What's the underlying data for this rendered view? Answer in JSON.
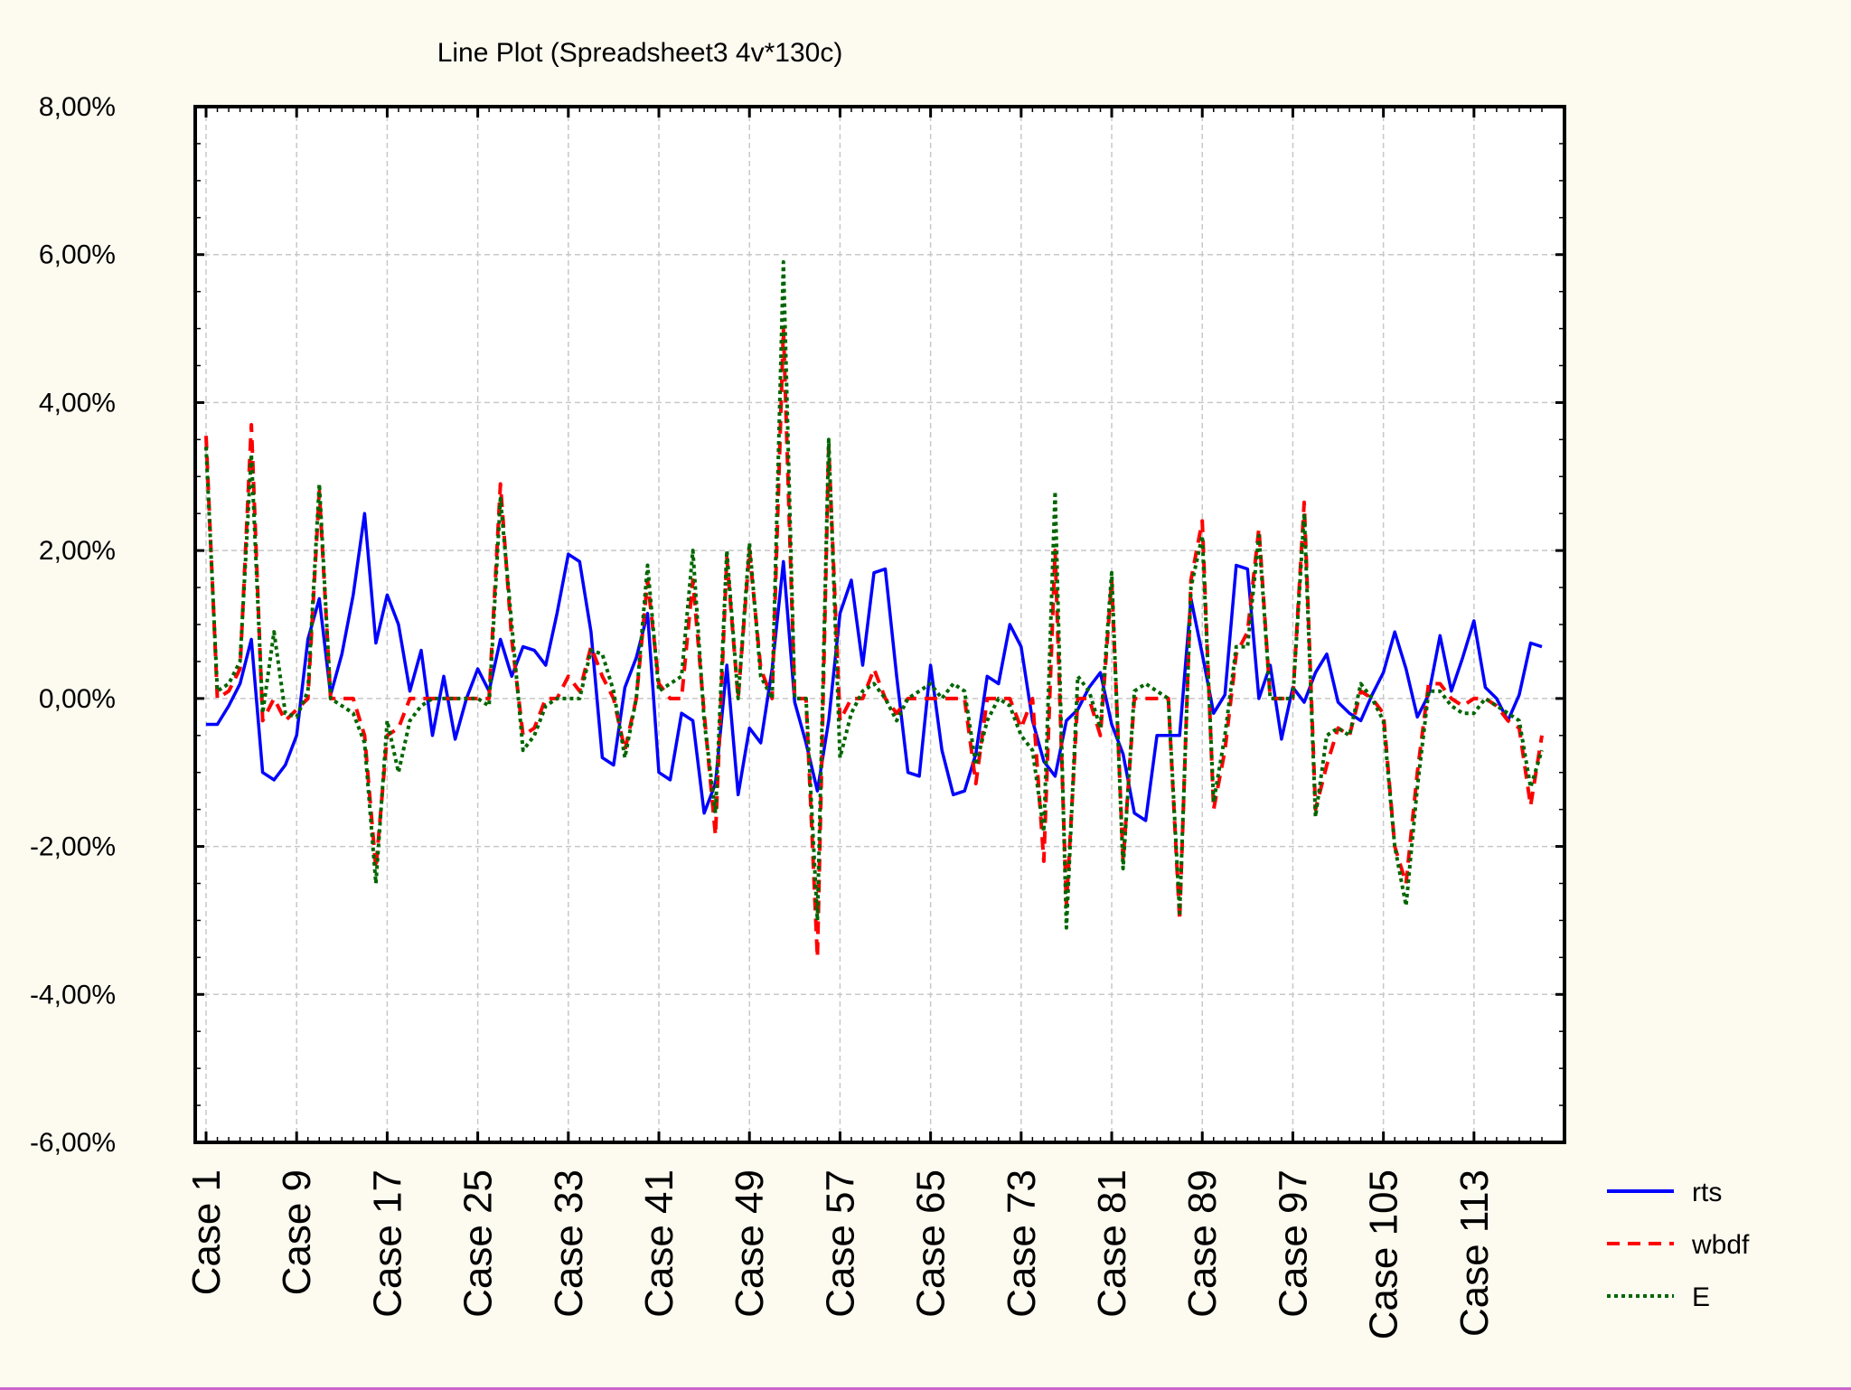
{
  "chart_data": {
    "type": "line",
    "title": "Line Plot (Spreadsheet3 4v*130c)",
    "xlabel": "",
    "ylabel": "",
    "ylim": [
      -6,
      8
    ],
    "y_ticks": [
      -6,
      -4,
      -2,
      0,
      2,
      4,
      6,
      8
    ],
    "y_tick_labels": [
      "-6,00%",
      "-4,00%",
      "-2,00%",
      "0,00%",
      "2,00%",
      "4,00%",
      "6,00%",
      "8,00%"
    ],
    "x_tick_labels": [
      "Case 1",
      "Case 9",
      "Case 17",
      "Case 25",
      "Case 33",
      "Case 41",
      "Case 49",
      "Case 57",
      "Case 65",
      "Case 73",
      "Case 81",
      "Case 89",
      "Case 97",
      "Case 105",
      "Case 113"
    ],
    "n_points": 119,
    "grid": true,
    "legend_position": "bottom-right",
    "series": [
      {
        "name": "rts",
        "color": "#0000ff",
        "style": "solid",
        "values": [
          -0.35,
          -0.35,
          -0.1,
          0.2,
          0.8,
          -1.0,
          -1.1,
          -0.9,
          -0.5,
          0.8,
          1.35,
          0.05,
          0.6,
          1.4,
          2.5,
          0.75,
          1.4,
          1.0,
          0.1,
          0.65,
          -0.5,
          0.3,
          -0.55,
          0.0,
          0.4,
          0.1,
          0.8,
          0.3,
          0.7,
          0.65,
          0.45,
          1.15,
          1.95,
          1.85,
          0.9,
          -0.8,
          -0.9,
          0.15,
          0.55,
          1.15,
          -1.0,
          -1.1,
          -0.2,
          -0.3,
          -1.55,
          -1.15,
          0.45,
          -1.3,
          -0.4,
          -0.6,
          0.4,
          1.85,
          -0.05,
          -0.6,
          -1.25,
          -0.3,
          1.15,
          1.6,
          0.45,
          1.7,
          1.75,
          0.3,
          -1.0,
          -1.05,
          0.45,
          -0.7,
          -1.3,
          -1.25,
          -0.75,
          0.3,
          0.2,
          1.0,
          0.7,
          -0.3,
          -0.85,
          -1.05,
          -0.3,
          -0.15,
          0.15,
          0.35,
          -0.35,
          -0.75,
          -1.55,
          -1.65,
          -0.5,
          -0.5,
          -0.5,
          1.35,
          0.6,
          -0.2,
          0.05,
          1.8,
          1.75,
          0.0,
          0.45,
          -0.55,
          0.15,
          -0.05,
          0.35,
          0.6,
          -0.05,
          -0.2,
          -0.3,
          0.05,
          0.35,
          0.9,
          0.4,
          -0.25,
          0.05,
          0.85,
          0.1,
          0.55,
          1.05,
          0.15,
          0.0,
          -0.3,
          0.05,
          0.75,
          0.7
        ]
      },
      {
        "name": "wbdf",
        "color": "#ff0000",
        "style": "dashed",
        "values": [
          3.55,
          0.0,
          0.1,
          0.4,
          3.7,
          -0.3,
          0.0,
          -0.3,
          -0.15,
          0.0,
          2.8,
          0.0,
          0.0,
          0.0,
          -0.5,
          -2.3,
          -0.5,
          -0.4,
          0.0,
          0.0,
          0.0,
          0.0,
          0.0,
          0.0,
          0.0,
          0.0,
          2.9,
          0.8,
          -0.5,
          -0.4,
          0.0,
          0.0,
          0.3,
          0.1,
          0.7,
          0.3,
          0.0,
          -0.7,
          0.0,
          1.6,
          0.2,
          0.0,
          0.0,
          1.6,
          -0.2,
          -1.85,
          1.9,
          0.0,
          2.0,
          0.4,
          0.0,
          5.0,
          0.0,
          0.0,
          -3.5,
          3.4,
          -0.3,
          0.0,
          0.0,
          0.4,
          0.0,
          -0.2,
          0.0,
          0.0,
          0.0,
          0.0,
          0.0,
          0.0,
          -1.15,
          0.0,
          0.0,
          0.0,
          -0.4,
          0.0,
          -2.2,
          2.0,
          -2.8,
          0.0,
          0.0,
          -0.5,
          1.6,
          -2.2,
          0.0,
          0.0,
          0.0,
          0.0,
          -3.0,
          1.6,
          2.4,
          -1.5,
          -0.7,
          0.6,
          0.9,
          2.3,
          0.0,
          0.0,
          0.0,
          2.65,
          -1.5,
          -0.9,
          -0.4,
          -0.5,
          0.1,
          0.0,
          -0.2,
          -2.0,
          -2.5,
          -1.0,
          0.2,
          0.2,
          0.0,
          -0.1,
          0.0,
          0.0,
          -0.1,
          -0.3,
          -0.4,
          -1.45,
          -0.5
        ]
      },
      {
        "name": "E",
        "color": "#006600",
        "style": "dotted",
        "values": [
          3.4,
          0.1,
          0.2,
          0.5,
          3.3,
          -0.2,
          0.9,
          -0.2,
          -0.25,
          0.1,
          2.9,
          0.0,
          -0.1,
          -0.2,
          -0.6,
          -2.5,
          -0.3,
          -1.0,
          -0.3,
          -0.1,
          0.0,
          0.0,
          0.0,
          0.0,
          0.0,
          -0.1,
          2.7,
          1.0,
          -0.7,
          -0.5,
          -0.1,
          0.0,
          0.0,
          0.0,
          0.65,
          0.6,
          0.1,
          -0.8,
          0.0,
          1.8,
          0.1,
          0.2,
          0.3,
          2.0,
          -0.3,
          -1.55,
          2.0,
          0.0,
          2.1,
          0.3,
          0.0,
          5.9,
          0.0,
          0.0,
          -3.0,
          3.5,
          -0.8,
          -0.2,
          0.1,
          0.2,
          0.0,
          -0.3,
          0.0,
          0.1,
          0.2,
          0.0,
          0.2,
          0.1,
          -0.9,
          -0.3,
          0.0,
          -0.1,
          -0.5,
          -0.7,
          -1.8,
          2.8,
          -3.1,
          0.3,
          0.1,
          -0.4,
          1.7,
          -2.3,
          0.1,
          0.2,
          0.1,
          0.0,
          -2.9,
          1.5,
          2.2,
          -1.4,
          -0.5,
          0.7,
          0.7,
          2.2,
          0.0,
          0.0,
          0.0,
          2.5,
          -1.6,
          -0.5,
          -0.4,
          -0.5,
          0.2,
          0.0,
          -0.3,
          -2.0,
          -2.8,
          -1.2,
          0.1,
          0.1,
          -0.1,
          -0.2,
          -0.2,
          0.0,
          -0.1,
          -0.2,
          -0.3,
          -1.2,
          -0.7
        ]
      }
    ]
  }
}
